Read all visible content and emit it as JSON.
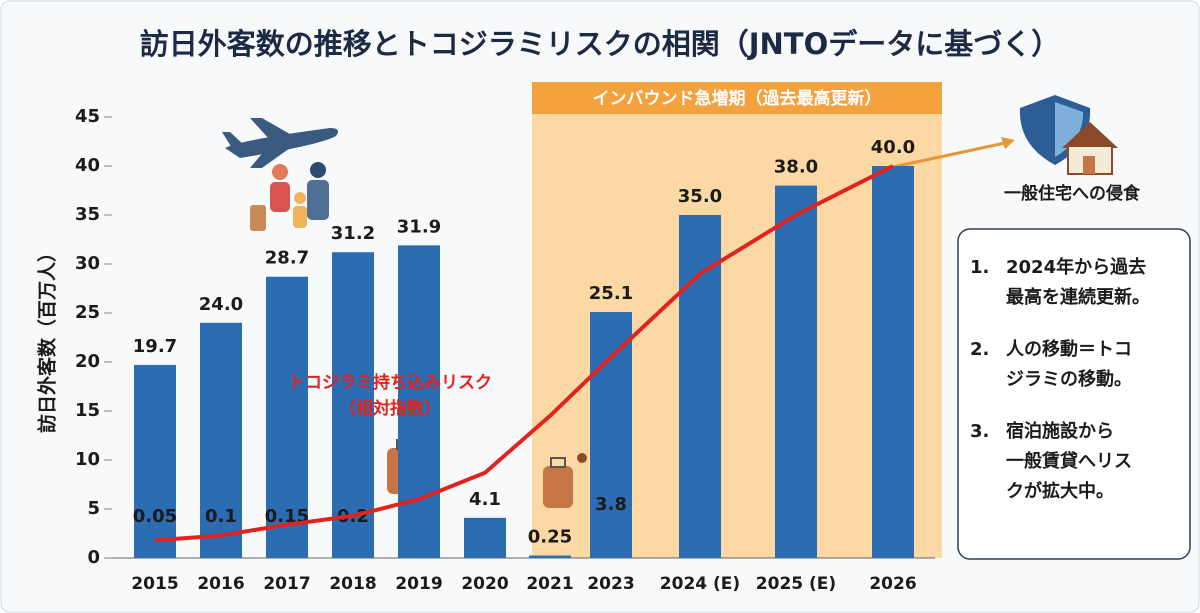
{
  "chart_data": {
    "type": "bar",
    "title": "訪日外客数の推移とトコジラミリスクの相関（JNTOデータに基づく）",
    "y_label": "訪日外客数（百万人）",
    "categories": [
      "2015",
      "2016",
      "2017",
      "2018",
      "2019",
      "2020",
      "2021",
      "2023",
      "2024 (E)",
      "2025 (E)",
      "2026"
    ],
    "values": [
      19.7,
      24.0,
      28.7,
      31.2,
      31.9,
      4.1,
      0.25,
      25.1,
      35.0,
      38.0,
      40.0
    ],
    "value_labels": [
      "19.7",
      "24.0",
      "28.7",
      "31.2",
      "31.9",
      "4.1",
      "0.25",
      "25.1",
      "35.0",
      "38.0",
      "40.0"
    ],
    "color": "#2b6cb3",
    "ylim": [
      0,
      45
    ],
    "yticks": [
      0,
      5,
      10,
      15,
      20,
      25,
      30,
      35,
      40,
      45
    ],
    "low_labels": [
      "0.05",
      "0.1",
      "0.15",
      "0.2",
      null,
      null,
      null,
      "3.8",
      null,
      null,
      null
    ],
    "risk_line": {
      "label_lines": [
        "トコジラミ持ち込みリスク",
        "（相対指数）"
      ],
      "color": "#e0231f",
      "values": [
        1.8,
        2.3,
        3.4,
        4.3,
        6.0,
        8.7,
        14.5,
        20.5,
        29.0,
        35.0,
        40.0
      ]
    },
    "highlight": {
      "label": "インバウンド急増期（過去最高更新）"
    },
    "arrow_label": "一般住宅への侵食",
    "notes": [
      {
        "number": "1.",
        "lines": [
          "2024年から過去",
          "最高を連続更新。"
        ]
      },
      {
        "number": "2.",
        "lines": [
          "人の移動＝トコ",
          "ジラミの移動。"
        ]
      },
      {
        "number": "3.",
        "lines": [
          "宿泊施設から",
          "一般賃貸へリス",
          "クが拡大中。"
        ]
      }
    ]
  }
}
